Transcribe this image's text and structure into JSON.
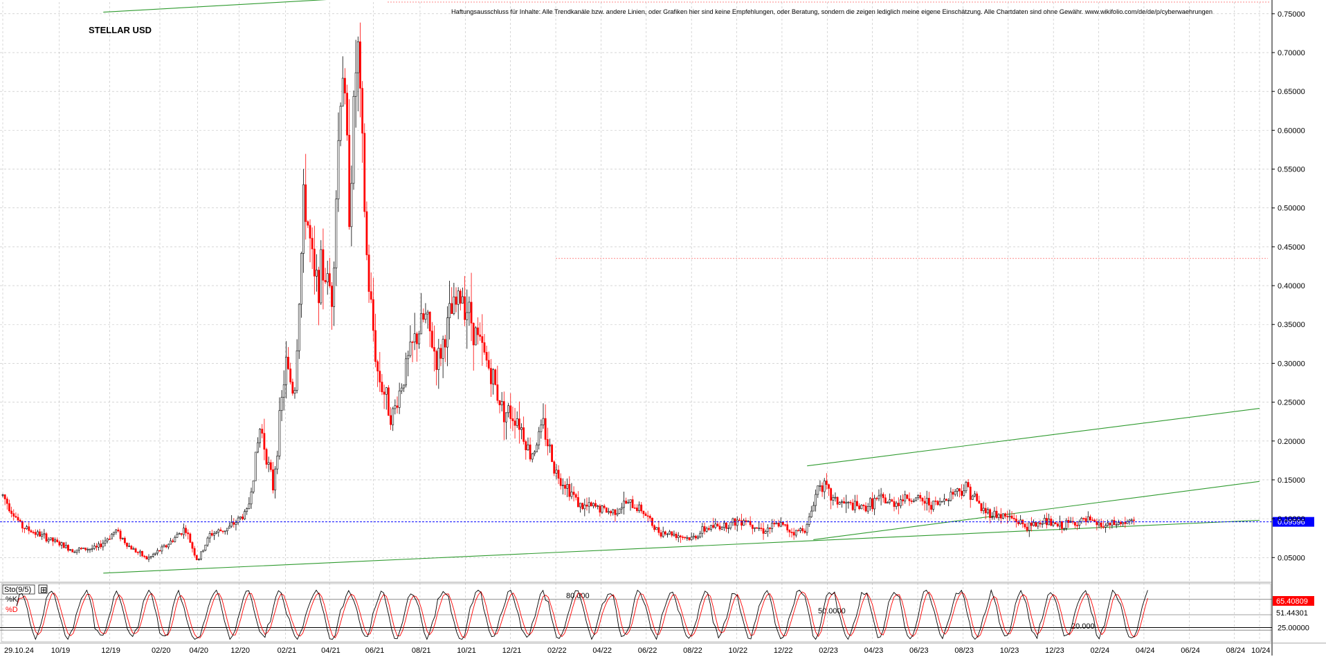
{
  "chart_data": {
    "type": "candlestick",
    "title": "STELLAR USD",
    "disclaimer": "Haftungsausschluss für Inhalte: Alle Trendkanäle bzw. andere Linien, oder Grafiken hier sind keine Empfehlungen, oder Beratung, sondern die zeigen lediglich meine eigene Einschätzung. Alle Chartdaten sind ohne Gewähr.  www.wikifolio.com/de/de/p/cyberwaehrungen",
    "ylim": [
      0.02,
      0.765
    ],
    "y_ticks": [
      "0.75000",
      "0.70000",
      "0.65000",
      "0.60000",
      "0.55000",
      "0.50000",
      "0.45000",
      "0.40000",
      "0.35000",
      "0.30000",
      "0.25000",
      "0.20000",
      "0.15000",
      "0.10000",
      "0.05000"
    ],
    "y_tick_values": [
      0.75,
      0.7,
      0.65,
      0.6,
      0.55,
      0.5,
      0.45,
      0.4,
      0.35,
      0.3,
      0.25,
      0.2,
      0.15,
      0.1,
      0.05
    ],
    "x_labels": [
      "29.10.24",
      "10/19",
      "12/19",
      "02/20",
      "04/20",
      "12/20",
      "02/21",
      "04/21",
      "06/21",
      "08/21",
      "10/21",
      "12/21",
      "02/22",
      "04/22",
      "06/22",
      "08/22",
      "10/22",
      "12/22",
      "02/23",
      "04/23",
      "06/23",
      "08/23",
      "10/23",
      "12/23",
      "02/24",
      "04/24",
      "06/24",
      "08/24",
      "10/24"
    ],
    "x_label_index": [
      0,
      0.045,
      0.085,
      0.125,
      0.155,
      0.188,
      0.225,
      0.26,
      0.295,
      0.332,
      0.368,
      0.404,
      0.44,
      0.476,
      0.512,
      0.548,
      0.584,
      0.62,
      0.656,
      0.692,
      0.728,
      0.764,
      0.8,
      0.836,
      0.872,
      0.908,
      0.944,
      0.98,
      1.0
    ],
    "price_path": [
      [
        0.0,
        0.13
      ],
      [
        0.015,
        0.09
      ],
      [
        0.035,
        0.075
      ],
      [
        0.055,
        0.06
      ],
      [
        0.075,
        0.062
      ],
      [
        0.09,
        0.085
      ],
      [
        0.1,
        0.065
      ],
      [
        0.115,
        0.048
      ],
      [
        0.13,
        0.065
      ],
      [
        0.145,
        0.088
      ],
      [
        0.155,
        0.045
      ],
      [
        0.165,
        0.08
      ],
      [
        0.18,
        0.088
      ],
      [
        0.195,
        0.11
      ],
      [
        0.205,
        0.22
      ],
      [
        0.215,
        0.14
      ],
      [
        0.225,
        0.3
      ],
      [
        0.232,
        0.26
      ],
      [
        0.24,
        0.52
      ],
      [
        0.248,
        0.4
      ],
      [
        0.255,
        0.42
      ],
      [
        0.262,
        0.39
      ],
      [
        0.27,
        0.7
      ],
      [
        0.276,
        0.5
      ],
      [
        0.282,
        0.72
      ],
      [
        0.29,
        0.42
      ],
      [
        0.298,
        0.29
      ],
      [
        0.31,
        0.23
      ],
      [
        0.32,
        0.29
      ],
      [
        0.328,
        0.33
      ],
      [
        0.336,
        0.36
      ],
      [
        0.346,
        0.3
      ],
      [
        0.356,
        0.36
      ],
      [
        0.366,
        0.39
      ],
      [
        0.378,
        0.33
      ],
      [
        0.388,
        0.29
      ],
      [
        0.398,
        0.24
      ],
      [
        0.41,
        0.23
      ],
      [
        0.42,
        0.18
      ],
      [
        0.43,
        0.22
      ],
      [
        0.44,
        0.16
      ],
      [
        0.45,
        0.14
      ],
      [
        0.46,
        0.115
      ],
      [
        0.472,
        0.115
      ],
      [
        0.484,
        0.108
      ],
      [
        0.496,
        0.12
      ],
      [
        0.508,
        0.113
      ],
      [
        0.52,
        0.085
      ],
      [
        0.535,
        0.08
      ],
      [
        0.548,
        0.074
      ],
      [
        0.56,
        0.088
      ],
      [
        0.575,
        0.092
      ],
      [
        0.59,
        0.1
      ],
      [
        0.605,
        0.085
      ],
      [
        0.618,
        0.093
      ],
      [
        0.63,
        0.082
      ],
      [
        0.64,
        0.09
      ],
      [
        0.65,
        0.15
      ],
      [
        0.66,
        0.125
      ],
      [
        0.672,
        0.118
      ],
      [
        0.684,
        0.113
      ],
      [
        0.696,
        0.125
      ],
      [
        0.708,
        0.12
      ],
      [
        0.72,
        0.128
      ],
      [
        0.732,
        0.122
      ],
      [
        0.744,
        0.118
      ],
      [
        0.756,
        0.135
      ],
      [
        0.768,
        0.14
      ],
      [
        0.78,
        0.11
      ],
      [
        0.792,
        0.105
      ],
      [
        0.804,
        0.1
      ],
      [
        0.816,
        0.088
      ],
      [
        0.828,
        0.098
      ],
      [
        0.84,
        0.09
      ],
      [
        0.852,
        0.095
      ],
      [
        0.864,
        0.097
      ],
      [
        0.876,
        0.09
      ],
      [
        0.888,
        0.094
      ],
      [
        0.9,
        0.096
      ]
    ],
    "resistance_level": 0.435,
    "current_price_label": "0.09596",
    "current_price": 0.09596,
    "lines": [
      {
        "name": "support-long",
        "from": [
          0.08,
          0.03
        ],
        "to": [
          1.0,
          0.098
        ]
      },
      {
        "name": "channel-upper",
        "from": [
          0.64,
          0.168
        ],
        "to": [
          1.0,
          0.242
        ]
      },
      {
        "name": "channel-mid",
        "from": [
          0.645,
          0.073
        ],
        "to": [
          1.0,
          0.148
        ]
      },
      {
        "name": "top-line",
        "from": [
          0.08,
          0.752
        ],
        "to": [
          0.3,
          0.772
        ]
      }
    ],
    "stochastic": {
      "title": "Sto(9/5)",
      "k_label": "%K",
      "d_label": "%D",
      "k_value": "65.40809",
      "d_value": "51.44301",
      "levels": [
        {
          "label": "80.000",
          "value": 80
        },
        {
          "label": "50.0000",
          "value": 50
        },
        {
          "label": "20.000",
          "value": 20
        },
        {
          "label": "25.00000",
          "value": 25
        }
      ]
    },
    "colors": {
      "up": "#000000",
      "down": "#ff0000",
      "trend": "#2e9a2e",
      "grid": "#bdbdbd",
      "price_line": "#0000ff",
      "price_label_bg": "#0000ff",
      "k_label_bg": "#ff0000"
    }
  }
}
